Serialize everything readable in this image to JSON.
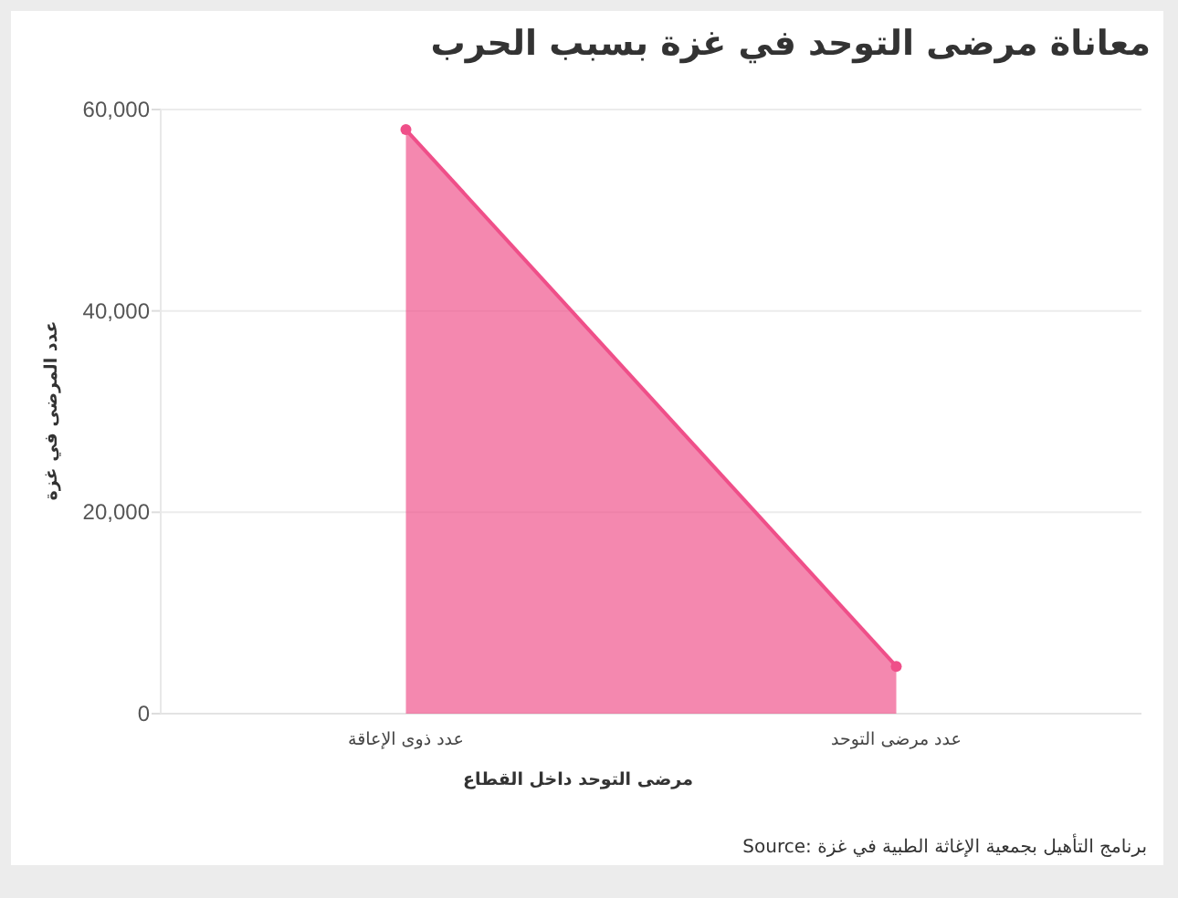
{
  "chart_data": {
    "type": "area",
    "title": "معاناة مرضى التوحد في غزة بسبب الحرب",
    "xlabel": "مرضى التوحد داخل القطاع",
    "ylabel": "عدد المرضى في غزة",
    "categories": [
      "عدد ذوى الإعاقة",
      "عدد مرضى التوحد"
    ],
    "values": [
      58000,
      4700
    ],
    "color": "#ef4f89",
    "marker": "circle",
    "ylim": [
      0,
      60000
    ],
    "yticks": [
      {
        "value": 0,
        "label": "0"
      },
      {
        "value": 20000,
        "label": "20,000"
      },
      {
        "value": 40000,
        "label": "40,000"
      },
      {
        "value": 60000,
        "label": "60,000"
      }
    ],
    "grid": "y",
    "annotations": [
      "Source: برنامج التأهيل بجمعية الإغاثة الطبية في غزة"
    ]
  }
}
